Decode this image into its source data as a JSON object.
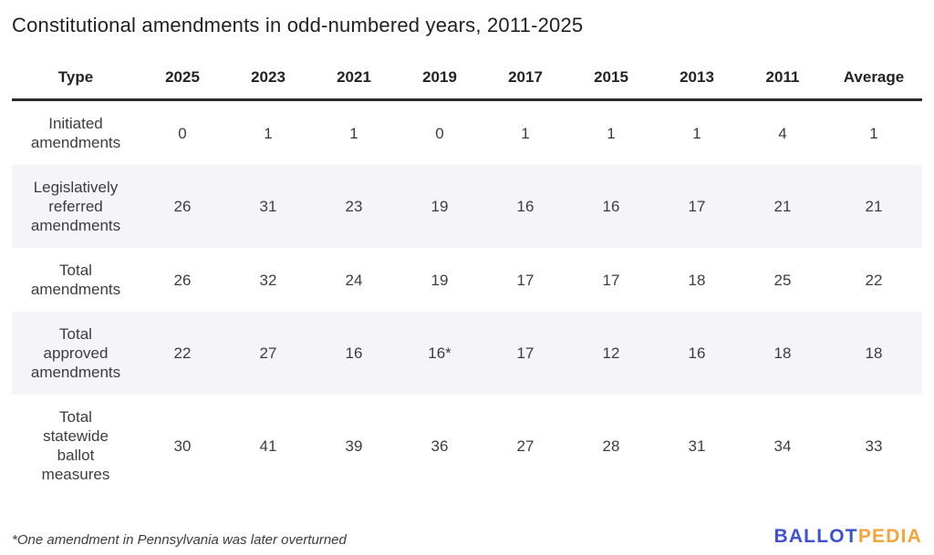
{
  "title": "Constitutional amendments in odd-numbered years, 2011-2025",
  "chart_data": {
    "type": "table",
    "title": "Constitutional amendments in odd-numbered years, 2011-2025",
    "columns": [
      "Type",
      "2025",
      "2023",
      "2021",
      "2019",
      "2017",
      "2015",
      "2013",
      "2011",
      "Average"
    ],
    "rows": [
      {
        "label": "Initiated amendments",
        "values": [
          "0",
          "1",
          "1",
          "0",
          "1",
          "1",
          "1",
          "4",
          "1"
        ]
      },
      {
        "label": "Legislatively referred amendments",
        "values": [
          "26",
          "31",
          "23",
          "19",
          "16",
          "16",
          "17",
          "21",
          "21"
        ]
      },
      {
        "label": "Total amendments",
        "values": [
          "26",
          "32",
          "24",
          "19",
          "17",
          "17",
          "18",
          "25",
          "22"
        ]
      },
      {
        "label": "Total approved amendments",
        "values": [
          "22",
          "27",
          "16",
          "16*",
          "17",
          "12",
          "16",
          "18",
          "18"
        ]
      },
      {
        "label": "Total statewide ballot measures",
        "values": [
          "30",
          "41",
          "39",
          "36",
          "27",
          "28",
          "31",
          "34",
          "33"
        ]
      }
    ],
    "layout": {
      "striped_row_indexes": [
        1,
        3
      ],
      "header_rule": true,
      "legend": "none",
      "grid": "off"
    }
  },
  "footnote": "*One amendment in Pennsylvania was later overturned",
  "logo": {
    "ballot": "BALLOT",
    "pedia": "PEDIA"
  },
  "colors": {
    "stripe": "#f4f4f9",
    "header_rule": "#2b2b2b",
    "title_text": "#1f2023",
    "text": "#3b3d40",
    "logo_blue": "#3d51d1",
    "logo_orange": "#f7a33c"
  }
}
